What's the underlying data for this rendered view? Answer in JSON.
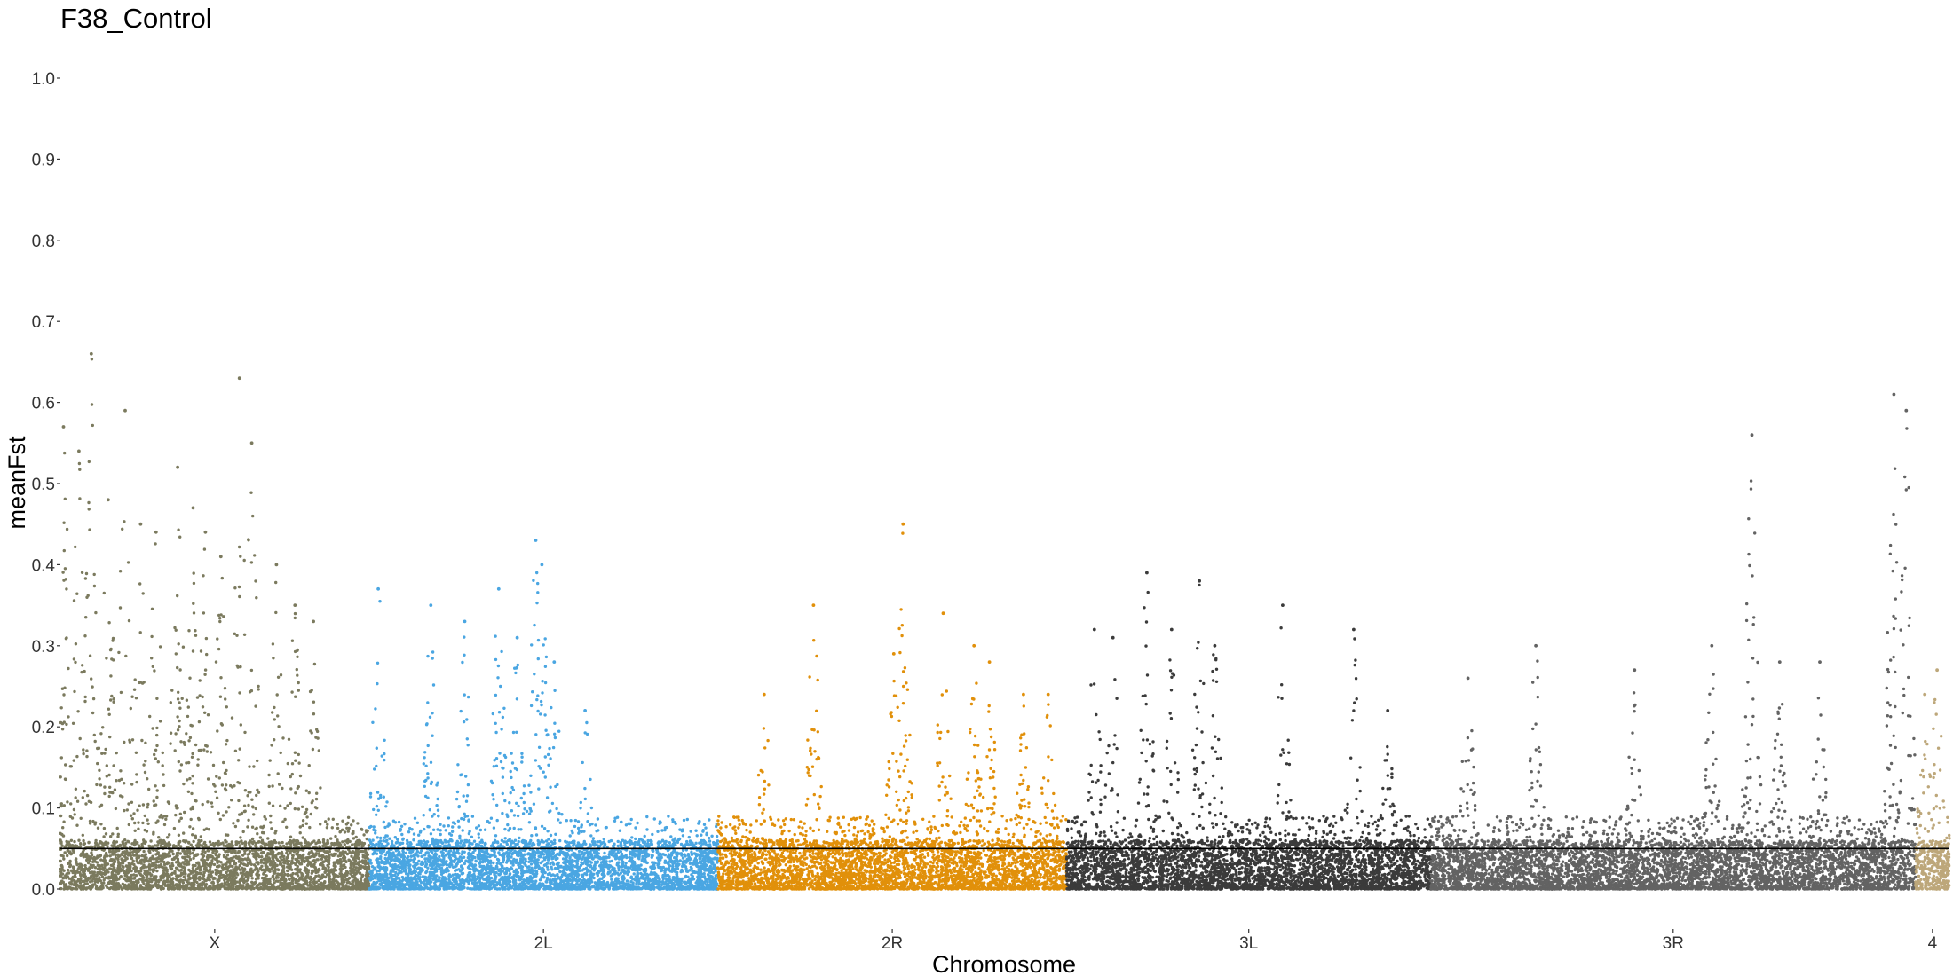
{
  "chart_data": {
    "type": "scatter",
    "title": "F38_Control",
    "xlabel": "Chromosome",
    "ylabel": "meanFst",
    "ylim": [
      0,
      1.0
    ],
    "y_ticks": [
      "0.0",
      "0.1",
      "0.2",
      "0.3",
      "0.4",
      "0.5",
      "0.6",
      "0.7",
      "0.8",
      "0.9",
      "1.0"
    ],
    "threshold_line": 0.05,
    "grid": false,
    "legend": "none",
    "chromosomes": [
      {
        "name": "X",
        "color": "#7b7a5e",
        "start": 0,
        "end": 1000,
        "peak_pos": [
          10,
          60,
          100,
          155,
          210,
          260,
          310,
          380,
          430,
          470,
          520,
          580,
          620,
          700,
          760,
          820
        ],
        "peak_val": [
          0.57,
          0.54,
          0.66,
          0.48,
          0.59,
          0.45,
          0.44,
          0.52,
          0.47,
          0.44,
          0.41,
          0.63,
          0.55,
          0.4,
          0.35,
          0.33
        ]
      },
      {
        "name": "2L",
        "color": "#4aa6e2",
        "start": 1000,
        "end": 2130,
        "peak_pos": [
          1030,
          1200,
          1310,
          1420,
          1480,
          1540,
          1560,
          1600,
          1700
        ],
        "peak_val": [
          0.37,
          0.35,
          0.33,
          0.37,
          0.31,
          0.43,
          0.4,
          0.28,
          0.22
        ]
      },
      {
        "name": "2R",
        "color": "#e1900a",
        "start": 2130,
        "end": 3260,
        "peak_pos": [
          2280,
          2440,
          2700,
          2730,
          2860,
          2960,
          3010,
          3120,
          3200
        ],
        "peak_val": [
          0.24,
          0.35,
          0.29,
          0.45,
          0.34,
          0.3,
          0.28,
          0.24,
          0.24
        ]
      },
      {
        "name": "3L",
        "color": "#3b3b3b",
        "start": 3260,
        "end": 4440,
        "peak_pos": [
          3350,
          3410,
          3520,
          3600,
          3690,
          3740,
          3960,
          4190,
          4300
        ],
        "peak_val": [
          0.32,
          0.31,
          0.39,
          0.32,
          0.38,
          0.3,
          0.35,
          0.32,
          0.22
        ]
      },
      {
        "name": "3R",
        "color": "#636363",
        "start": 4440,
        "end": 6010,
        "peak_pos": [
          4560,
          4780,
          5100,
          5350,
          5480,
          5570,
          5700,
          5940,
          5980
        ],
        "peak_val": [
          0.26,
          0.3,
          0.27,
          0.3,
          0.56,
          0.28,
          0.28,
          0.61,
          0.59
        ]
      },
      {
        "name": "4",
        "color": "#bda77a",
        "start": 6010,
        "end": 6120,
        "peak_pos": [
          6040,
          6080
        ],
        "peak_val": [
          0.24,
          0.27
        ]
      }
    ],
    "x_ticks": [
      {
        "label": "X",
        "pos": 500
      },
      {
        "label": "2L",
        "pos": 1565
      },
      {
        "label": "2R",
        "pos": 2695
      },
      {
        "label": "3L",
        "pos": 3850
      },
      {
        "label": "3R",
        "pos": 5225
      },
      {
        "label": "4",
        "pos": 6065
      }
    ]
  }
}
